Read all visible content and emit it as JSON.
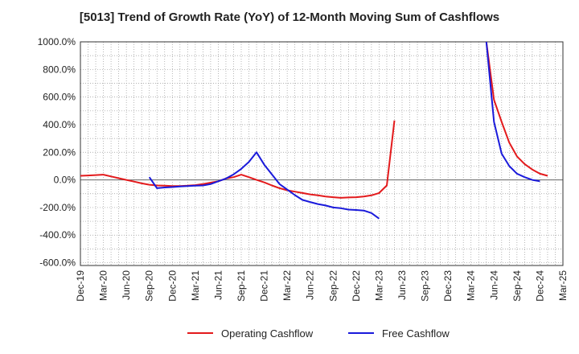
{
  "chart_data": {
    "type": "line",
    "title": "[5013]  Trend of Growth Rate (YoY) of 12-Month Moving Sum of Cashflows",
    "x_tick_labels": [
      "Dec-19",
      "Mar-20",
      "Jun-20",
      "Sep-20",
      "Dec-20",
      "Mar-21",
      "Jun-21",
      "Sep-21",
      "Dec-21",
      "Mar-22",
      "Jun-22",
      "Sep-22",
      "Dec-22",
      "Mar-23",
      "Jun-23",
      "Sep-23",
      "Dec-23",
      "Mar-24",
      "Jun-24",
      "Sep-24",
      "Dec-24",
      "Mar-25"
    ],
    "y_tick_labels": [
      "1000.0%",
      "800.0%",
      "600.0%",
      "400.0%",
      "200.0%",
      "0.0%",
      "-200.0%",
      "-400.0%",
      "-600.0%"
    ],
    "ylim": [
      -620,
      1000
    ],
    "y_ticks": [
      1000,
      800,
      600,
      400,
      200,
      0,
      -200,
      -400,
      -600
    ],
    "grid": true,
    "legend_position": "bottom",
    "colors": {
      "operating": "#e31a1c",
      "free": "#1a1adb",
      "grid": "#999999",
      "axis": "#333333"
    },
    "series": [
      {
        "name": "Operating Cashflow",
        "color": "#e31a1c",
        "points": [
          [
            0,
            30
          ],
          [
            1,
            32
          ],
          [
            2,
            35
          ],
          [
            3,
            38
          ],
          [
            4,
            25
          ],
          [
            5,
            12
          ],
          [
            6,
            0
          ],
          [
            7,
            -12
          ],
          [
            8,
            -25
          ],
          [
            9,
            -35
          ],
          [
            10,
            -40
          ],
          [
            11,
            -42
          ],
          [
            12,
            -45
          ],
          [
            13,
            -44
          ],
          [
            14,
            -42
          ],
          [
            15,
            -38
          ],
          [
            16,
            -30
          ],
          [
            17,
            -20
          ],
          [
            18,
            -10
          ],
          [
            19,
            10
          ],
          [
            20,
            20
          ],
          [
            21,
            38
          ],
          [
            22,
            20
          ],
          [
            23,
            0
          ],
          [
            24,
            -18
          ],
          [
            25,
            -40
          ],
          [
            26,
            -60
          ],
          [
            27,
            -75
          ],
          [
            28,
            -85
          ],
          [
            29,
            -95
          ],
          [
            30,
            -105
          ],
          [
            31,
            -112
          ],
          [
            32,
            -120
          ],
          [
            33,
            -125
          ],
          [
            34,
            -130
          ],
          [
            35,
            -127
          ],
          [
            36,
            -125
          ],
          [
            37,
            -120
          ],
          [
            38,
            -112
          ],
          [
            39,
            -95
          ],
          [
            40,
            -40
          ],
          [
            41,
            430
          ],
          null,
          [
            53,
            1000
          ],
          [
            54,
            580
          ],
          [
            55,
            420
          ],
          [
            56,
            270
          ],
          [
            57,
            170
          ],
          [
            58,
            115
          ],
          [
            59,
            75
          ],
          [
            60,
            45
          ],
          [
            61,
            30
          ]
        ]
      },
      {
        "name": "Free Cashflow",
        "color": "#1a1adb",
        "points": [
          [
            9,
            20
          ],
          [
            10,
            -60
          ],
          [
            11,
            -55
          ],
          [
            12,
            -52
          ],
          [
            13,
            -48
          ],
          [
            14,
            -45
          ],
          [
            15,
            -42
          ],
          [
            16,
            -40
          ],
          [
            17,
            -30
          ],
          [
            18,
            -10
          ],
          [
            19,
            10
          ],
          [
            20,
            40
          ],
          [
            21,
            80
          ],
          [
            22,
            130
          ],
          [
            23,
            200
          ],
          [
            24,
            110
          ],
          [
            25,
            40
          ],
          [
            26,
            -30
          ],
          [
            27,
            -70
          ],
          [
            28,
            -110
          ],
          [
            29,
            -145
          ],
          [
            30,
            -160
          ],
          [
            31,
            -175
          ],
          [
            32,
            -185
          ],
          [
            33,
            -200
          ],
          [
            34,
            -205
          ],
          [
            35,
            -215
          ],
          [
            36,
            -218
          ],
          [
            37,
            -222
          ],
          [
            38,
            -240
          ],
          [
            39,
            -280
          ],
          null,
          [
            53,
            1000
          ],
          [
            54,
            420
          ],
          [
            55,
            190
          ],
          [
            56,
            100
          ],
          [
            57,
            45
          ],
          [
            58,
            20
          ],
          [
            59,
            0
          ],
          [
            60,
            -10
          ]
        ]
      }
    ]
  }
}
